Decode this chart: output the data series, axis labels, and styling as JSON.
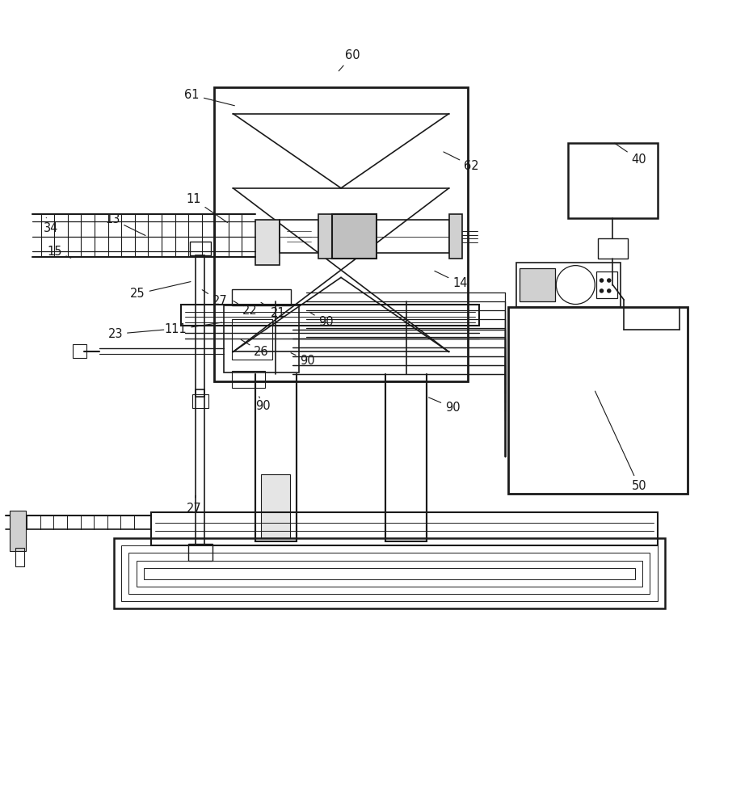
{
  "bg": "#ffffff",
  "lc": "#1a1a1a",
  "fw": 9.27,
  "fh": 10.0,
  "dpi": 100
}
